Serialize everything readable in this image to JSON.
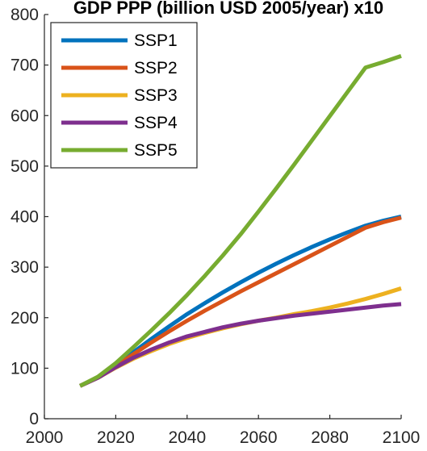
{
  "chart_data": {
    "type": "line",
    "title": "GDP PPP (billion USD 2005/year) x10",
    "xlabel": "",
    "ylabel": "",
    "xlim": [
      2000,
      2100
    ],
    "ylim": [
      0,
      800
    ],
    "xticks": [
      2000,
      2020,
      2040,
      2060,
      2080,
      2100
    ],
    "yticks": [
      0,
      100,
      200,
      300,
      400,
      500,
      600,
      700,
      800
    ],
    "grid": false,
    "legend_position": "top-left",
    "x": [
      2010,
      2015,
      2020,
      2025,
      2030,
      2035,
      2040,
      2045,
      2050,
      2055,
      2060,
      2065,
      2070,
      2075,
      2080,
      2085,
      2090,
      2095,
      2100
    ],
    "series": [
      {
        "name": "SSP1",
        "color": "#0072BD",
        "values": [
          65,
          82,
          105,
          132,
          158,
          183,
          207,
          229,
          250,
          270,
          289,
          307,
          324,
          340,
          355,
          369,
          382,
          392,
          400
        ]
      },
      {
        "name": "SSP2",
        "color": "#D95319",
        "values": [
          65,
          82,
          104,
          128,
          151,
          173,
          194,
          214,
          233,
          252,
          270,
          288,
          306,
          324,
          342,
          360,
          378,
          389,
          398
        ]
      },
      {
        "name": "SSP3",
        "color": "#EDB120",
        "values": [
          65,
          81,
          101,
          119,
          134,
          148,
          160,
          170,
          179,
          187,
          194,
          200,
          207,
          213,
          220,
          228,
          237,
          247,
          258
        ]
      },
      {
        "name": "SSP4",
        "color": "#7E2F8E",
        "values": [
          65,
          81,
          102,
          121,
          137,
          151,
          163,
          172,
          181,
          188,
          194,
          199,
          204,
          208,
          212,
          216,
          220,
          224,
          227
        ]
      },
      {
        "name": "SSP5",
        "color": "#77AC30",
        "values": [
          65,
          83,
          110,
          142,
          175,
          209,
          245,
          283,
          323,
          365,
          410,
          456,
          503,
          551,
          599,
          647,
          695,
          706,
          718
        ]
      }
    ]
  }
}
